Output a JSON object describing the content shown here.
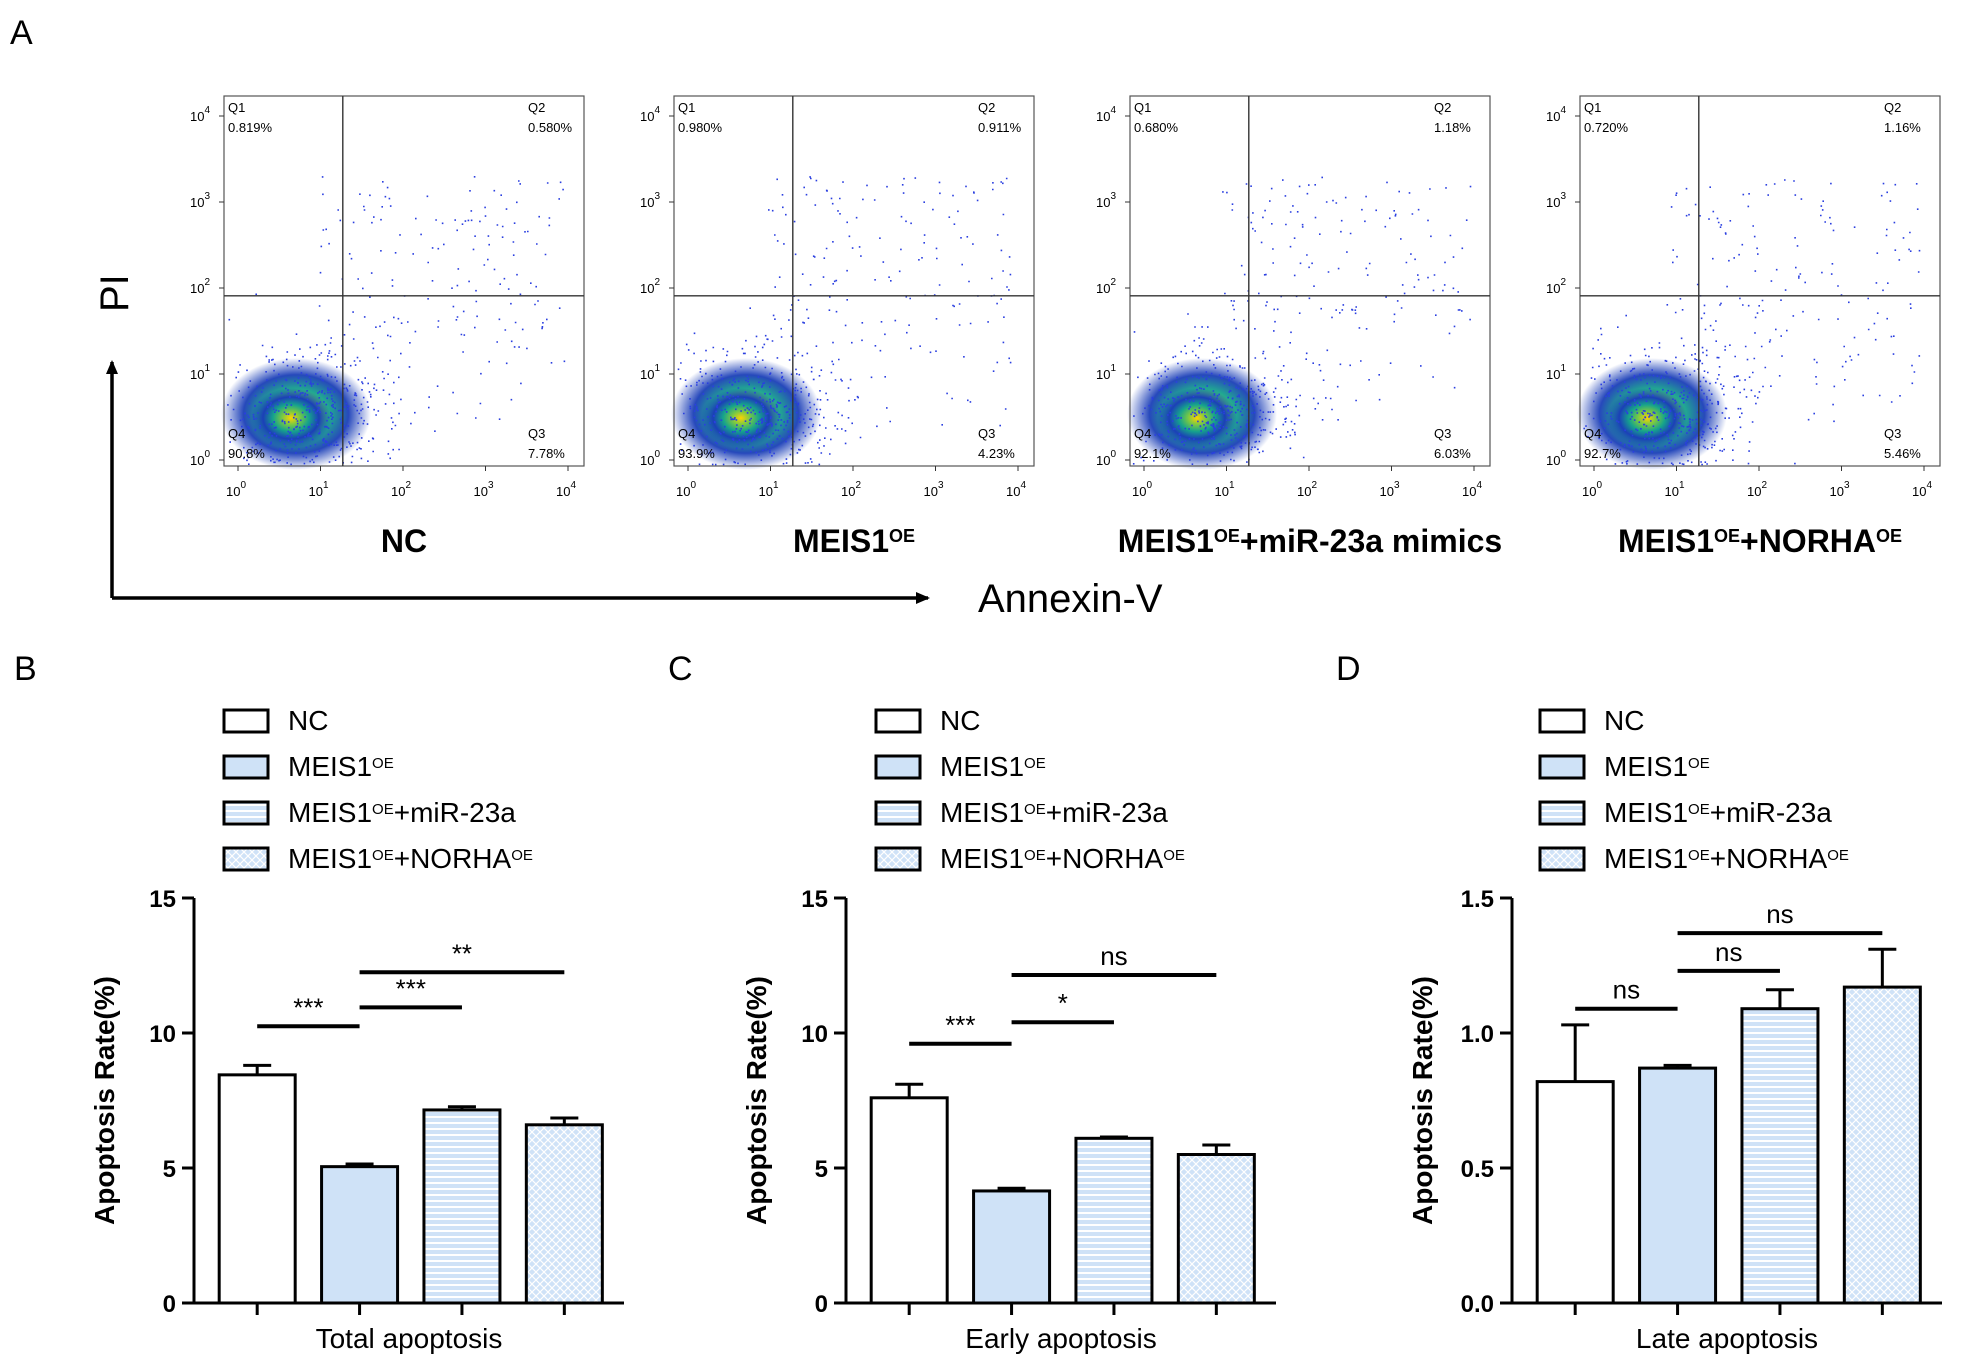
{
  "panel_labels": [
    "A",
    "B",
    "C",
    "D"
  ],
  "flow": {
    "y_axis_label": "PI",
    "x_axis_label": "Annexin-V",
    "tick_labels": [
      "10",
      "10",
      "10",
      "10",
      "10"
    ],
    "tick_exponents": [
      "0",
      "1",
      "2",
      "3",
      "4"
    ],
    "quadrant_names": [
      "Q1",
      "Q2",
      "Q3",
      "Q4"
    ],
    "plots": [
      {
        "label_main": "NC",
        "label_sup": "",
        "label_tail": "",
        "label_sup2": "",
        "q1": "0.819%",
        "q2": "0.580%",
        "q3": "7.78%",
        "q4": "90.8%"
      },
      {
        "label_main": "MEIS1",
        "label_sup": "OE",
        "label_tail": "",
        "label_sup2": "",
        "q1": "0.980%",
        "q2": "0.911%",
        "q3": "4.23%",
        "q4": "93.9%"
      },
      {
        "label_main": "MEIS1",
        "label_sup": "OE",
        "label_tail": "+miR-23a mimics",
        "label_sup2": "",
        "q1": "0.680%",
        "q2": "1.18%",
        "q3": "6.03%",
        "q4": "92.1%"
      },
      {
        "label_main": "MEIS1",
        "label_sup": "OE",
        "label_tail": "+NORHA",
        "label_sup2": "OE",
        "q1": "0.720%",
        "q2": "1.16%",
        "q3": "5.46%",
        "q4": "92.7%"
      }
    ]
  },
  "legend": [
    {
      "main": "NC",
      "sup": "",
      "tail": "",
      "sup2": ""
    },
    {
      "main": "MEIS1",
      "sup": "OE",
      "tail": "",
      "sup2": ""
    },
    {
      "main": "MEIS1",
      "sup": "OE",
      "tail": "+miR-23a",
      "sup2": ""
    },
    {
      "main": "MEIS1",
      "sup": "OE",
      "tail": "+NORHA",
      "sup2": "OE"
    }
  ],
  "colors": {
    "bar_fill": "#cfe2f7",
    "bar_stripe": "#ffffff",
    "stroke": "#000000"
  },
  "chart_data": [
    {
      "type": "bar",
      "title": "",
      "xlabel": "Total apoptosis",
      "ylabel": "Apoptosis Rate(%)",
      "ylim": [
        0,
        15
      ],
      "yticks": [
        "0",
        "5",
        "10",
        "15"
      ],
      "categories": [
        "NC",
        "MEIS1OE",
        "MEIS1OE+miR-23a",
        "MEIS1OE+NORHAOE"
      ],
      "values": [
        8.45,
        5.05,
        7.15,
        6.6
      ],
      "errors": [
        0.35,
        0.1,
        0.12,
        0.25
      ],
      "significance": [
        {
          "from": 0,
          "to": 1,
          "label": "***",
          "level": 10.25
        },
        {
          "from": 1,
          "to": 2,
          "label": "***",
          "level": 10.95
        },
        {
          "from": 1,
          "to": 3,
          "label": "**",
          "level": 12.25
        }
      ]
    },
    {
      "type": "bar",
      "title": "",
      "xlabel": "Early apoptosis",
      "ylabel": "Apoptosis Rate(%)",
      "ylim": [
        0,
        15
      ],
      "yticks": [
        "0",
        "5",
        "10",
        "15"
      ],
      "categories": [
        "NC",
        "MEIS1OE",
        "MEIS1OE+miR-23a",
        "MEIS1OE+NORHAOE"
      ],
      "values": [
        7.6,
        4.15,
        6.1,
        5.5
      ],
      "errors": [
        0.5,
        0.1,
        0.05,
        0.35
      ],
      "significance": [
        {
          "from": 0,
          "to": 1,
          "label": "***",
          "level": 9.6
        },
        {
          "from": 1,
          "to": 2,
          "label": "*",
          "level": 10.4
        },
        {
          "from": 1,
          "to": 3,
          "label": "ns",
          "level": 12.15
        }
      ]
    },
    {
      "type": "bar",
      "title": "",
      "xlabel": "Late apoptosis",
      "ylabel": "Apoptosis Rate(%)",
      "ylim": [
        0,
        1.5
      ],
      "yticks": [
        "0.0",
        "0.5",
        "1.0",
        "1.5"
      ],
      "categories": [
        "NC",
        "MEIS1OE",
        "MEIS1OE+miR-23a",
        "MEIS1OE+NORHAOE"
      ],
      "values": [
        0.82,
        0.87,
        1.09,
        1.17
      ],
      "errors": [
        0.21,
        0.01,
        0.07,
        0.14
      ],
      "significance": [
        {
          "from": 0,
          "to": 1,
          "label": "ns",
          "level": 1.09
        },
        {
          "from": 1,
          "to": 2,
          "label": "ns",
          "level": 1.23
        },
        {
          "from": 1,
          "to": 3,
          "label": "ns",
          "level": 1.37
        }
      ]
    }
  ]
}
